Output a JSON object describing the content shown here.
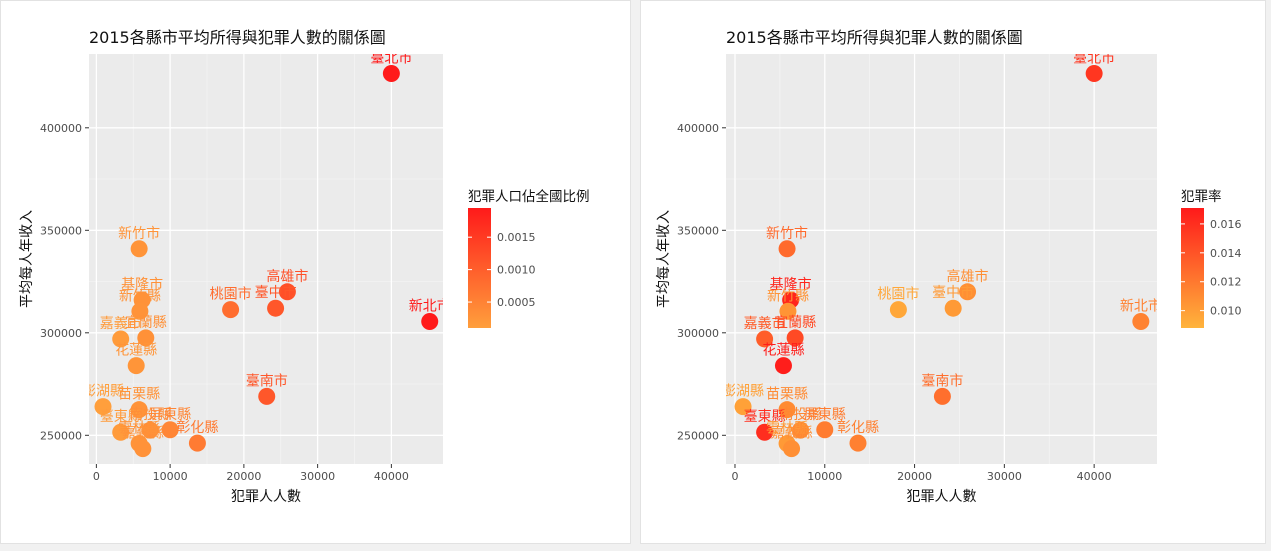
{
  "chart_data": [
    {
      "type": "scatter",
      "title": "2015各縣市平均所得與犯罪人數的關係圖",
      "xlabel": "犯罪人人數",
      "ylabel": "平均每人年收入",
      "xlim": [
        -1000,
        47000
      ],
      "ylim": [
        236000,
        436000
      ],
      "xticks": [
        0,
        10000,
        20000,
        30000,
        40000
      ],
      "yticks": [
        250000,
        300000,
        350000,
        400000
      ],
      "grid": true,
      "legend": {
        "title": "犯罪人口佔全國比例",
        "placement": "right",
        "labels": [
          "0.0015",
          "0.0010",
          "0.0005"
        ],
        "label_values": [
          0.0015,
          0.001,
          0.0005
        ],
        "range": [
          0.0001,
          0.00195
        ],
        "colors": [
          "#ff9f3c",
          "#ff1a1a"
        ]
      },
      "points": [
        {
          "label": "臺北市",
          "x": 40000,
          "y": 426500,
          "c": 0.00195
        },
        {
          "label": "新北市",
          "x": 45200,
          "y": 305500,
          "c": 0.00195
        },
        {
          "label": "高雄市",
          "x": 25900,
          "y": 320000,
          "c": 0.0012
        },
        {
          "label": "臺中市",
          "x": 24300,
          "y": 312000,
          "c": 0.0011
        },
        {
          "label": "桃園市",
          "x": 18200,
          "y": 311300,
          "c": 0.0008
        },
        {
          "label": "臺南市",
          "x": 23100,
          "y": 269000,
          "c": 0.0011
        },
        {
          "label": "新竹市",
          "x": 5800,
          "y": 341000,
          "c": 0.00025
        },
        {
          "label": "基隆市",
          "x": 6200,
          "y": 316000,
          "c": 0.00028
        },
        {
          "label": "新竹縣",
          "x": 5900,
          "y": 310500,
          "c": 0.00026
        },
        {
          "label": "嘉義市",
          "x": 3300,
          "y": 297000,
          "c": 0.00015
        },
        {
          "label": "宜蘭縣",
          "x": 6700,
          "y": 297500,
          "c": 0.0003
        },
        {
          "label": "花蓮縣",
          "x": 5400,
          "y": 284000,
          "c": 0.00024
        },
        {
          "label": "澎湖縣",
          "x": 900,
          "y": 264000,
          "c": 0.0001
        },
        {
          "label": "苗栗縣",
          "x": 5800,
          "y": 262500,
          "c": 0.00026
        },
        {
          "label": "臺東縣",
          "x": 3300,
          "y": 251500,
          "c": 0.00015
        },
        {
          "label": "南投縣",
          "x": 7300,
          "y": 252500,
          "c": 0.00033
        },
        {
          "label": "屏東縣",
          "x": 10000,
          "y": 252700,
          "c": 0.00045
        },
        {
          "label": "彰化縣",
          "x": 13700,
          "y": 246200,
          "c": 0.0006
        },
        {
          "label": "雲林縣",
          "x": 5800,
          "y": 246000,
          "c": 0.00026
        },
        {
          "label": "嘉義縣",
          "x": 6300,
          "y": 243500,
          "c": 0.00028
        }
      ]
    },
    {
      "type": "scatter",
      "title": "2015各縣市平均所得與犯罪人數的關係圖",
      "xlabel": "犯罪人人數",
      "ylabel": "平均每人年收入",
      "xlim": [
        -1000,
        47000
      ],
      "ylim": [
        236000,
        436000
      ],
      "xticks": [
        0,
        10000,
        20000,
        30000,
        40000
      ],
      "yticks": [
        250000,
        300000,
        350000,
        400000
      ],
      "grid": true,
      "legend": {
        "title": "犯罪率",
        "placement": "right",
        "labels": [
          "0.016",
          "0.014",
          "0.012",
          "0.010"
        ],
        "label_values": [
          0.016,
          0.014,
          0.012,
          0.01
        ],
        "range": [
          0.0088,
          0.0171
        ],
        "colors": [
          "#ffb43c",
          "#ff1a1a"
        ]
      },
      "points": [
        {
          "label": "臺北市",
          "x": 40000,
          "y": 426500,
          "c": 0.0156
        },
        {
          "label": "新北市",
          "x": 45200,
          "y": 305500,
          "c": 0.0115
        },
        {
          "label": "高雄市",
          "x": 25900,
          "y": 320000,
          "c": 0.0108
        },
        {
          "label": "臺中市",
          "x": 24300,
          "y": 312000,
          "c": 0.0102
        },
        {
          "label": "桃園市",
          "x": 18200,
          "y": 311300,
          "c": 0.0095
        },
        {
          "label": "臺南市",
          "x": 23100,
          "y": 269000,
          "c": 0.0125
        },
        {
          "label": "新竹市",
          "x": 5800,
          "y": 341000,
          "c": 0.0128
        },
        {
          "label": "基隆市",
          "x": 6200,
          "y": 316000,
          "c": 0.0165
        },
        {
          "label": "新竹縣",
          "x": 5900,
          "y": 310500,
          "c": 0.0105
        },
        {
          "label": "嘉義市",
          "x": 3300,
          "y": 297000,
          "c": 0.0135
        },
        {
          "label": "宜蘭縣",
          "x": 6700,
          "y": 297500,
          "c": 0.0145
        },
        {
          "label": "花蓮縣",
          "x": 5400,
          "y": 284000,
          "c": 0.0169
        },
        {
          "label": "澎湖縣",
          "x": 900,
          "y": 264000,
          "c": 0.0098
        },
        {
          "label": "苗栗縣",
          "x": 5800,
          "y": 262500,
          "c": 0.011
        },
        {
          "label": "臺東縣",
          "x": 3300,
          "y": 251500,
          "c": 0.016
        },
        {
          "label": "南投縣",
          "x": 7300,
          "y": 252500,
          "c": 0.0112
        },
        {
          "label": "屏東縣",
          "x": 10000,
          "y": 252700,
          "c": 0.0118
        },
        {
          "label": "彰化縣",
          "x": 13700,
          "y": 246200,
          "c": 0.0116
        },
        {
          "label": "雲林縣",
          "x": 5800,
          "y": 246000,
          "c": 0.0102
        },
        {
          "label": "嘉義縣",
          "x": 6300,
          "y": 243500,
          "c": 0.0108
        }
      ]
    }
  ]
}
